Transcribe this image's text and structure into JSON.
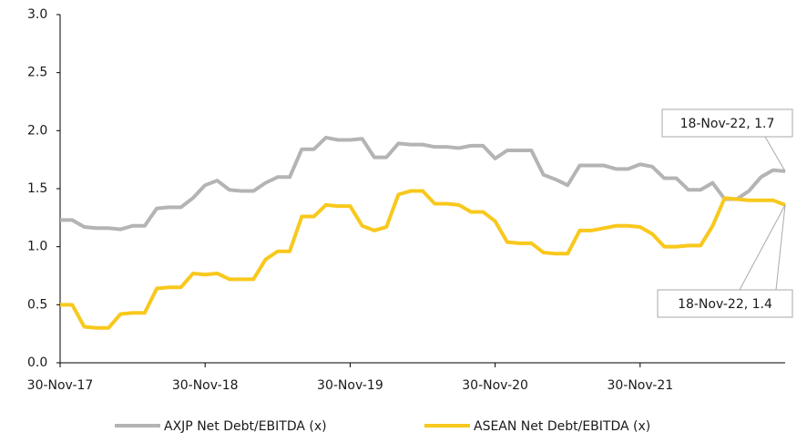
{
  "chart_data": {
    "type": "line",
    "categories": [
      "30-Nov-17",
      null,
      null,
      null,
      null,
      null,
      null,
      null,
      null,
      null,
      null,
      null,
      "30-Nov-18",
      null,
      null,
      null,
      null,
      null,
      null,
      null,
      null,
      null,
      null,
      null,
      "30-Nov-19",
      null,
      null,
      null,
      null,
      null,
      null,
      null,
      null,
      null,
      null,
      null,
      "30-Nov-20",
      null,
      null,
      null,
      null,
      null,
      null,
      null,
      null,
      null,
      null,
      null,
      "30-Nov-21",
      null,
      null,
      null,
      null,
      null,
      null,
      null,
      null,
      null,
      null,
      null,
      null
    ],
    "series": [
      {
        "name": "AXJP Net Debt/EBITDA (x)",
        "color": "#b4b4b4",
        "values": [
          1.23,
          1.23,
          1.17,
          1.16,
          1.16,
          1.15,
          1.18,
          1.18,
          1.33,
          1.34,
          1.34,
          1.42,
          1.53,
          1.57,
          1.49,
          1.48,
          1.48,
          1.55,
          1.6,
          1.6,
          1.84,
          1.84,
          1.94,
          1.92,
          1.92,
          1.93,
          1.77,
          1.77,
          1.89,
          1.88,
          1.88,
          1.86,
          1.86,
          1.85,
          1.87,
          1.87,
          1.76,
          1.83,
          1.83,
          1.83,
          1.62,
          1.58,
          1.53,
          1.7,
          1.7,
          1.7,
          1.67,
          1.67,
          1.71,
          1.69,
          1.59,
          1.59,
          1.49,
          1.49,
          1.55,
          1.41,
          1.41,
          1.48,
          1.6,
          1.66,
          1.65
        ]
      },
      {
        "name": "ASEAN Net Debt/EBITDA (x)",
        "color": "#f8c81c",
        "values": [
          0.5,
          0.5,
          0.31,
          0.3,
          0.3,
          0.42,
          0.43,
          0.43,
          0.64,
          0.65,
          0.65,
          0.77,
          0.76,
          0.77,
          0.72,
          0.72,
          0.72,
          0.89,
          0.96,
          0.96,
          1.26,
          1.26,
          1.36,
          1.35,
          1.35,
          1.18,
          1.14,
          1.17,
          1.45,
          1.48,
          1.48,
          1.37,
          1.37,
          1.36,
          1.3,
          1.3,
          1.22,
          1.04,
          1.03,
          1.03,
          0.95,
          0.94,
          0.94,
          1.14,
          1.14,
          1.16,
          1.18,
          1.18,
          1.17,
          1.11,
          1.0,
          1.0,
          1.01,
          1.01,
          1.18,
          1.42,
          1.41,
          1.4,
          1.4,
          1.4,
          1.36
        ]
      }
    ],
    "annotations": [
      "18-Nov-22, 1.7",
      "18-Nov-22, 1.4"
    ],
    "ylim": [
      0,
      3
    ],
    "yticks": [
      {
        "value": 0,
        "label": "0.0"
      },
      0.5,
      {
        "value": 1,
        "label": "1.0"
      },
      1.5,
      {
        "value": 2,
        "label": "2.0"
      },
      2.5,
      {
        "value": 3,
        "label": "3.0"
      }
    ],
    "grid": false,
    "legend": "bottom"
  }
}
